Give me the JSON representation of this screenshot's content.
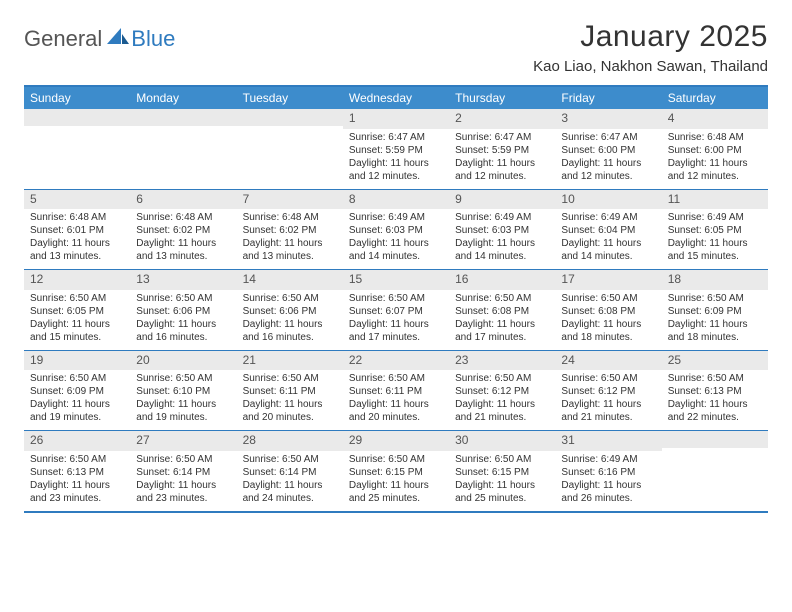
{
  "brand": {
    "part1": "General",
    "part2": "Blue"
  },
  "title": "January 2025",
  "location": "Kao Liao, Nakhon Sawan, Thailand",
  "colors": {
    "accent": "#3d8ccc",
    "border": "#2f7bbf",
    "daynum_bg": "#eaeaea",
    "text": "#333333",
    "white": "#ffffff"
  },
  "weekdays": [
    "Sunday",
    "Monday",
    "Tuesday",
    "Wednesday",
    "Thursday",
    "Friday",
    "Saturday"
  ],
  "weeks": [
    [
      null,
      null,
      null,
      {
        "n": "1",
        "sr": "6:47 AM",
        "ss": "5:59 PM",
        "dl": "11 hours and 12 minutes."
      },
      {
        "n": "2",
        "sr": "6:47 AM",
        "ss": "5:59 PM",
        "dl": "11 hours and 12 minutes."
      },
      {
        "n": "3",
        "sr": "6:47 AM",
        "ss": "6:00 PM",
        "dl": "11 hours and 12 minutes."
      },
      {
        "n": "4",
        "sr": "6:48 AM",
        "ss": "6:00 PM",
        "dl": "11 hours and 12 minutes."
      }
    ],
    [
      {
        "n": "5",
        "sr": "6:48 AM",
        "ss": "6:01 PM",
        "dl": "11 hours and 13 minutes."
      },
      {
        "n": "6",
        "sr": "6:48 AM",
        "ss": "6:02 PM",
        "dl": "11 hours and 13 minutes."
      },
      {
        "n": "7",
        "sr": "6:48 AM",
        "ss": "6:02 PM",
        "dl": "11 hours and 13 minutes."
      },
      {
        "n": "8",
        "sr": "6:49 AM",
        "ss": "6:03 PM",
        "dl": "11 hours and 14 minutes."
      },
      {
        "n": "9",
        "sr": "6:49 AM",
        "ss": "6:03 PM",
        "dl": "11 hours and 14 minutes."
      },
      {
        "n": "10",
        "sr": "6:49 AM",
        "ss": "6:04 PM",
        "dl": "11 hours and 14 minutes."
      },
      {
        "n": "11",
        "sr": "6:49 AM",
        "ss": "6:05 PM",
        "dl": "11 hours and 15 minutes."
      }
    ],
    [
      {
        "n": "12",
        "sr": "6:50 AM",
        "ss": "6:05 PM",
        "dl": "11 hours and 15 minutes."
      },
      {
        "n": "13",
        "sr": "6:50 AM",
        "ss": "6:06 PM",
        "dl": "11 hours and 16 minutes."
      },
      {
        "n": "14",
        "sr": "6:50 AM",
        "ss": "6:06 PM",
        "dl": "11 hours and 16 minutes."
      },
      {
        "n": "15",
        "sr": "6:50 AM",
        "ss": "6:07 PM",
        "dl": "11 hours and 17 minutes."
      },
      {
        "n": "16",
        "sr": "6:50 AM",
        "ss": "6:08 PM",
        "dl": "11 hours and 17 minutes."
      },
      {
        "n": "17",
        "sr": "6:50 AM",
        "ss": "6:08 PM",
        "dl": "11 hours and 18 minutes."
      },
      {
        "n": "18",
        "sr": "6:50 AM",
        "ss": "6:09 PM",
        "dl": "11 hours and 18 minutes."
      }
    ],
    [
      {
        "n": "19",
        "sr": "6:50 AM",
        "ss": "6:09 PM",
        "dl": "11 hours and 19 minutes."
      },
      {
        "n": "20",
        "sr": "6:50 AM",
        "ss": "6:10 PM",
        "dl": "11 hours and 19 minutes."
      },
      {
        "n": "21",
        "sr": "6:50 AM",
        "ss": "6:11 PM",
        "dl": "11 hours and 20 minutes."
      },
      {
        "n": "22",
        "sr": "6:50 AM",
        "ss": "6:11 PM",
        "dl": "11 hours and 20 minutes."
      },
      {
        "n": "23",
        "sr": "6:50 AM",
        "ss": "6:12 PM",
        "dl": "11 hours and 21 minutes."
      },
      {
        "n": "24",
        "sr": "6:50 AM",
        "ss": "6:12 PM",
        "dl": "11 hours and 21 minutes."
      },
      {
        "n": "25",
        "sr": "6:50 AM",
        "ss": "6:13 PM",
        "dl": "11 hours and 22 minutes."
      }
    ],
    [
      {
        "n": "26",
        "sr": "6:50 AM",
        "ss": "6:13 PM",
        "dl": "11 hours and 23 minutes."
      },
      {
        "n": "27",
        "sr": "6:50 AM",
        "ss": "6:14 PM",
        "dl": "11 hours and 23 minutes."
      },
      {
        "n": "28",
        "sr": "6:50 AM",
        "ss": "6:14 PM",
        "dl": "11 hours and 24 minutes."
      },
      {
        "n": "29",
        "sr": "6:50 AM",
        "ss": "6:15 PM",
        "dl": "11 hours and 25 minutes."
      },
      {
        "n": "30",
        "sr": "6:50 AM",
        "ss": "6:15 PM",
        "dl": "11 hours and 25 minutes."
      },
      {
        "n": "31",
        "sr": "6:49 AM",
        "ss": "6:16 PM",
        "dl": "11 hours and 26 minutes."
      },
      null
    ]
  ],
  "labels": {
    "sunrise": "Sunrise:",
    "sunset": "Sunset:",
    "daylight": "Daylight:"
  }
}
